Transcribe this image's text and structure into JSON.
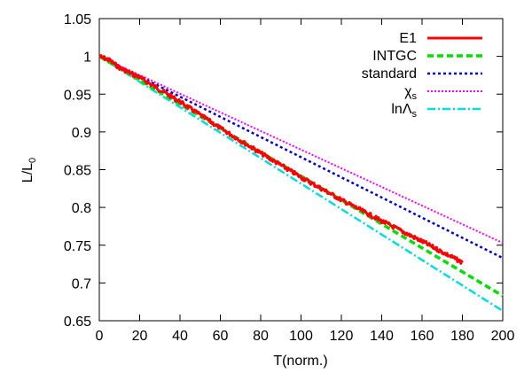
{
  "chart_data": {
    "type": "line",
    "title": "",
    "xlabel": "T(norm.)",
    "ylabel_main": "L/L",
    "ylabel_sub": "0",
    "xlim": [
      0,
      200
    ],
    "ylim": [
      0.65,
      1.05
    ],
    "xticks": [
      0,
      20,
      40,
      60,
      80,
      100,
      120,
      140,
      160,
      180,
      200
    ],
    "yticks": [
      0.65,
      0.7,
      0.75,
      0.8,
      0.85,
      0.9,
      0.95,
      1,
      1.05
    ],
    "ytick_labels": [
      "0.65",
      "0.7",
      "0.75",
      "0.8",
      "0.85",
      "0.9",
      "0.95",
      "1",
      "1.05"
    ],
    "grid": false,
    "legend_position": "top-right",
    "series": [
      {
        "name": "E1",
        "color": "#ff0000",
        "style": "solid",
        "noisy": true,
        "x": [
          0,
          5,
          10,
          20,
          40,
          60,
          80,
          100,
          120,
          140,
          160,
          180
        ],
        "y": [
          1.0,
          0.995,
          0.985,
          0.972,
          0.94,
          0.905,
          0.872,
          0.84,
          0.81,
          0.782,
          0.755,
          0.727
        ]
      },
      {
        "name": "INTGC",
        "color": "#00dd00",
        "style": "dashed",
        "x": [
          0,
          200
        ],
        "y": [
          1.0,
          0.683
        ]
      },
      {
        "name": "standard",
        "color": "#0000cc",
        "style": "dotted",
        "x": [
          0,
          200
        ],
        "y": [
          1.0,
          0.733
        ]
      },
      {
        "name": "χ",
        "name_sub": "s",
        "color": "#ff00ff",
        "style": "dotted-fine",
        "x": [
          0,
          200
        ],
        "y": [
          1.0,
          0.753
        ]
      },
      {
        "name": "lnΛ",
        "name_sub": "s",
        "color": "#00dddd",
        "style": "dashdot",
        "x": [
          0,
          200
        ],
        "y": [
          1.0,
          0.663
        ]
      }
    ]
  }
}
